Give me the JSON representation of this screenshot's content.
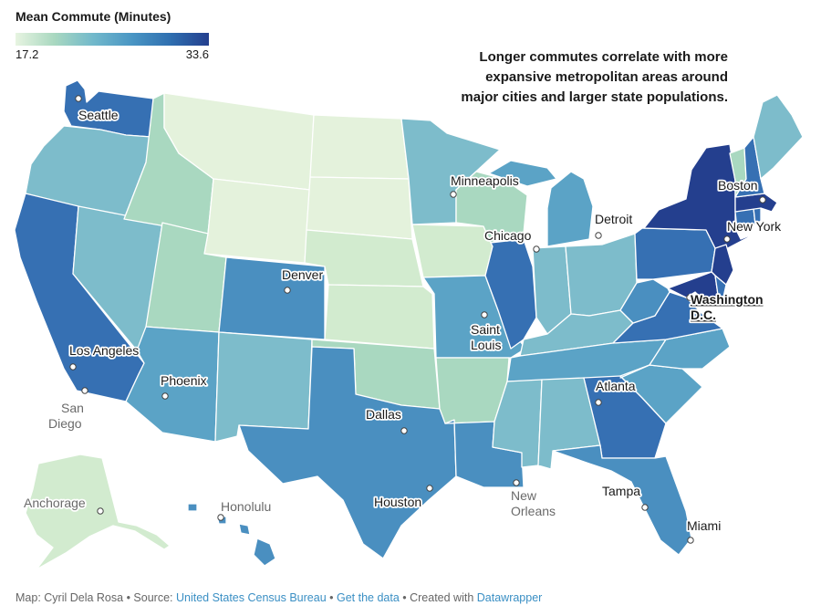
{
  "legend": {
    "title": "Mean Commute (Minutes)",
    "min": "17.2",
    "max": "33.6"
  },
  "headline": "Longer commutes correlate with more expansive metropolitan areas around major cities and larger state populations.",
  "colors": {
    "very_low": "#e4f2dc",
    "low": "#d2ebcf",
    "mid_low": "#a9d8c0",
    "mid": "#7dbccb",
    "mid_high": "#5ba3c6",
    "high": "#4a8fc0",
    "very_high": "#3670b3",
    "highest": "#243f8e"
  },
  "cities": {
    "seattle": "Seattle",
    "minneapolis": "Minneapolis",
    "boston": "Boston",
    "detroit": "Detroit",
    "chicago": "Chicago",
    "new_york": "New York",
    "denver": "Denver",
    "washington_1": "Washington",
    "washington_2": "D.C.",
    "saint_1": "Saint",
    "saint_2": "Louis",
    "los_angeles": "Los Angeles",
    "phoenix": "Phoenix",
    "atlanta": "Atlanta",
    "san_1": "San",
    "san_2": "Diego",
    "dallas": "Dallas",
    "houston": "Houston",
    "new_orleans_1": "New",
    "new_orleans_2": "Orleans",
    "tampa": "Tampa",
    "anchorage": "Anchorage",
    "honolulu": "Honolulu",
    "miami": "Miami"
  },
  "footer": {
    "prefix": "Map: Cyril Dela Rosa • Source: ",
    "source_link": "United States Census Bureau",
    "sep1": " • ",
    "data_link": "Get the data",
    "sep2": " • Created with ",
    "tool_link": "Datawrapper"
  }
}
